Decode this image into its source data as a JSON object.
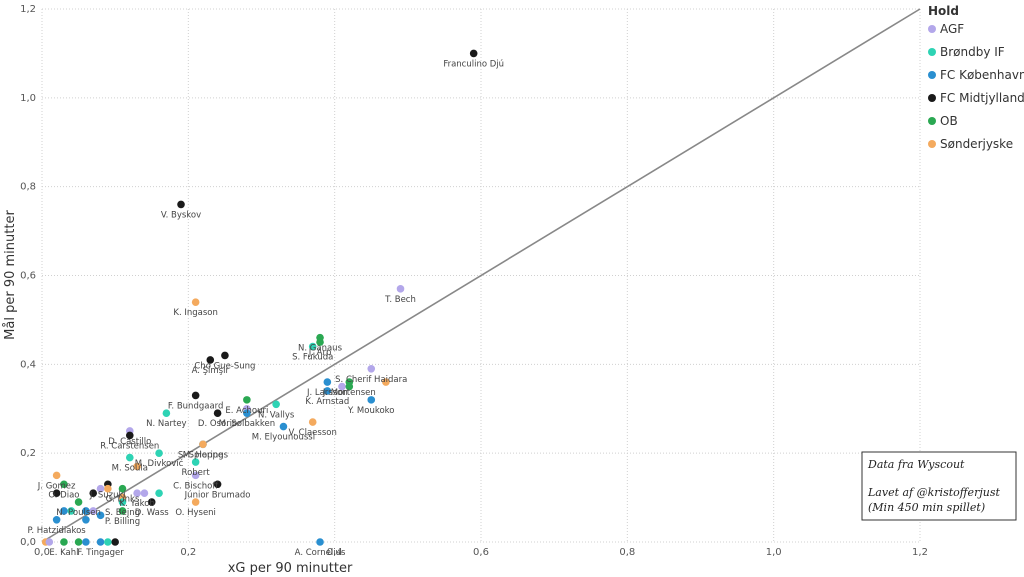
{
  "chart_data": {
    "type": "scatter",
    "xlabel": "xG per 90 minutter",
    "ylabel": "Mål per 90 minutter",
    "xlim": [
      0,
      1.2
    ],
    "ylim": [
      0,
      1.2
    ],
    "xticks": [
      "0,0",
      "0,2",
      "0,4",
      "0,6",
      "0,8",
      "1,0",
      "1,2"
    ],
    "yticks": [
      "0,0",
      "0,2",
      "0,4",
      "0,6",
      "0,8",
      "1,0",
      "1,2"
    ],
    "grid": true,
    "reference_line": {
      "from": [
        0,
        0
      ],
      "to": [
        1.2,
        1.2
      ],
      "color": "#888888"
    },
    "legend": {
      "title": "Hold",
      "position": "right",
      "entries": [
        {
          "name": "AGF",
          "color": "#b3a7ea"
        },
        {
          "name": "Brøndby IF",
          "color": "#2ed3b4"
        },
        {
          "name": "FC København",
          "color": "#2a8fd0"
        },
        {
          "name": "FC Midtjylland",
          "color": "#1a1a1a"
        },
        {
          "name": "OB",
          "color": "#2aa852"
        },
        {
          "name": "Sønderjyske",
          "color": "#f4aa5e"
        }
      ]
    },
    "annotation_box": [
      "Data fra Wyscout",
      "Lavet af @kristofferjust",
      "(Min 450 min spillet)"
    ],
    "points": [
      {
        "x": 0.59,
        "y": 1.1,
        "team": "FC Midtjylland",
        "label": "Franculino Djú"
      },
      {
        "x": 0.19,
        "y": 0.76,
        "team": "FC Midtjylland",
        "label": "V. Byskov"
      },
      {
        "x": 0.49,
        "y": 0.57,
        "team": "AGF",
        "label": "T. Bech"
      },
      {
        "x": 0.21,
        "y": 0.54,
        "team": "Sønderjyske",
        "label": "K. Ingason"
      },
      {
        "x": 0.38,
        "y": 0.46,
        "team": "OB",
        "label": "N. Ganaus"
      },
      {
        "x": 0.38,
        "y": 0.45,
        "team": "OB",
        "label": "J. Arp"
      },
      {
        "x": 0.37,
        "y": 0.44,
        "team": "Brøndby IF",
        "label": "S. Fukuda"
      },
      {
        "x": 0.25,
        "y": 0.42,
        "team": "FC Midtjylland",
        "label": "Cho Gue-Sung"
      },
      {
        "x": 0.23,
        "y": 0.41,
        "team": "FC Midtjylland",
        "label": "A. Şimşir"
      },
      {
        "x": 0.45,
        "y": 0.39,
        "team": "AGF",
        "label": "S. Cherif Haidara"
      },
      {
        "x": 0.42,
        "y": 0.36,
        "team": "OB",
        "label": "J. Mortensen"
      },
      {
        "x": 0.47,
        "y": 0.36,
        "team": "Sønderjyske",
        "label": ""
      },
      {
        "x": 0.39,
        "y": 0.36,
        "team": "FC København",
        "label": "J. Larsson"
      },
      {
        "x": 0.41,
        "y": 0.35,
        "team": "AGF",
        "label": ""
      },
      {
        "x": 0.42,
        "y": 0.35,
        "team": "OB",
        "label": ""
      },
      {
        "x": 0.39,
        "y": 0.34,
        "team": "FC København",
        "label": "K. Arnstad"
      },
      {
        "x": 0.21,
        "y": 0.33,
        "team": "FC Midtjylland",
        "label": "F. Bundgaard"
      },
      {
        "x": 0.45,
        "y": 0.32,
        "team": "FC København",
        "label": "Y. Moukoko"
      },
      {
        "x": 0.28,
        "y": 0.32,
        "team": "OB",
        "label": "E. Achouri"
      },
      {
        "x": 0.32,
        "y": 0.31,
        "team": "Brøndby IF",
        "label": "N. Vallys"
      },
      {
        "x": 0.28,
        "y": 0.3,
        "team": "AGF",
        "label": ""
      },
      {
        "x": 0.24,
        "y": 0.29,
        "team": "FC Midtjylland",
        "label": "D. Osorio"
      },
      {
        "x": 0.28,
        "y": 0.29,
        "team": "FC København",
        "label": "M. Sølbakken"
      },
      {
        "x": 0.17,
        "y": 0.29,
        "team": "Brøndby IF",
        "label": "N. Nartey"
      },
      {
        "x": 0.37,
        "y": 0.27,
        "team": "Sønderjyske",
        "label": "V. Claesson"
      },
      {
        "x": 0.33,
        "y": 0.26,
        "team": "FC København",
        "label": "M. Elyounoussi"
      },
      {
        "x": 0.12,
        "y": 0.25,
        "team": "AGF",
        "label": "D. Castillo"
      },
      {
        "x": 0.12,
        "y": 0.24,
        "team": "FC Midtjylland",
        "label": "R. Carstensen"
      },
      {
        "x": 0.22,
        "y": 0.22,
        "team": "FC København",
        "label": "M. Hoppe"
      },
      {
        "x": 0.22,
        "y": 0.22,
        "team": "Sønderjyske",
        "label": "S. Spierings"
      },
      {
        "x": 0.16,
        "y": 0.2,
        "team": "Brøndby IF",
        "label": "M. Divković"
      },
      {
        "x": 0.12,
        "y": 0.19,
        "team": "Brøndby IF",
        "label": "M. Soula"
      },
      {
        "x": 0.21,
        "y": 0.18,
        "team": "Brøndby IF",
        "label": "Robert"
      },
      {
        "x": 0.13,
        "y": 0.17,
        "team": "Sønderjyske",
        "label": ""
      },
      {
        "x": 0.02,
        "y": 0.15,
        "team": "Sønderjyske",
        "label": "J. Gomez"
      },
      {
        "x": 0.21,
        "y": 0.15,
        "team": "AGF",
        "label": "C. Bischoff"
      },
      {
        "x": 0.03,
        "y": 0.13,
        "team": "OB",
        "label": "O. Diao"
      },
      {
        "x": 0.09,
        "y": 0.13,
        "team": "FC Midtjylland",
        "label": "J. Suzuki"
      },
      {
        "x": 0.24,
        "y": 0.13,
        "team": "FC Midtjylland",
        "label": "Júnior Brumado"
      },
      {
        "x": 0.11,
        "y": 0.12,
        "team": "OB",
        "label": "G. Links"
      },
      {
        "x": 0.09,
        "y": 0.12,
        "team": "Sønderjyske",
        "label": ""
      },
      {
        "x": 0.08,
        "y": 0.12,
        "team": "AGF",
        "label": ""
      },
      {
        "x": 0.02,
        "y": 0.11,
        "team": "FC Midtjylland",
        "label": ""
      },
      {
        "x": 0.07,
        "y": 0.11,
        "team": "FC Midtjylland",
        "label": ""
      },
      {
        "x": 0.13,
        "y": 0.11,
        "team": "AGF",
        "label": "K. Yakob"
      },
      {
        "x": 0.14,
        "y": 0.11,
        "team": "AGF",
        "label": ""
      },
      {
        "x": 0.16,
        "y": 0.11,
        "team": "Brøndby IF",
        "label": ""
      },
      {
        "x": 0.11,
        "y": 0.1,
        "team": "Sønderjyske",
        "label": ""
      },
      {
        "x": 0.05,
        "y": 0.09,
        "team": "OB",
        "label": "N. Poulsen"
      },
      {
        "x": 0.11,
        "y": 0.09,
        "team": "Brøndby IF",
        "label": "S. Bejng"
      },
      {
        "x": 0.15,
        "y": 0.09,
        "team": "FC Midtjylland",
        "label": "D. Wass"
      },
      {
        "x": 0.21,
        "y": 0.09,
        "team": "Sønderjyske",
        "label": "O. Hyseni"
      },
      {
        "x": 0.03,
        "y": 0.07,
        "team": "FC København",
        "label": ""
      },
      {
        "x": 0.04,
        "y": 0.07,
        "team": "Brøndby IF",
        "label": ""
      },
      {
        "x": 0.06,
        "y": 0.07,
        "team": "FC København",
        "label": ""
      },
      {
        "x": 0.07,
        "y": 0.07,
        "team": "AGF",
        "label": ""
      },
      {
        "x": 0.11,
        "y": 0.07,
        "team": "OB",
        "label": "P. Billing"
      },
      {
        "x": 0.08,
        "y": 0.06,
        "team": "FC København",
        "label": ""
      },
      {
        "x": 0.02,
        "y": 0.05,
        "team": "FC København",
        "label": "P. Hatzidiakos"
      },
      {
        "x": 0.06,
        "y": 0.05,
        "team": "FC København",
        "label": ""
      },
      {
        "x": 0.38,
        "y": 0.0,
        "team": "FC København",
        "label": "A. Cornelius"
      },
      {
        "x": 0.03,
        "y": 0.0,
        "team": "OB",
        "label": "E. Kahl"
      },
      {
        "x": 0.08,
        "y": 0.0,
        "team": "FC København",
        "label": "F. Tingager"
      },
      {
        "x": 0.1,
        "y": 0.0,
        "team": "FC Midtjylland",
        "label": ""
      },
      {
        "x": 0.005,
        "y": 0.0,
        "team": "Sønderjyske",
        "label": ""
      },
      {
        "x": 0.01,
        "y": 0.0,
        "team": "AGF",
        "label": ""
      },
      {
        "x": 0.05,
        "y": 0.0,
        "team": "OB",
        "label": ""
      },
      {
        "x": 0.06,
        "y": 0.0,
        "team": "FC København",
        "label": ""
      },
      {
        "x": 0.09,
        "y": 0.0,
        "team": "Brøndby IF",
        "label": ""
      }
    ]
  }
}
